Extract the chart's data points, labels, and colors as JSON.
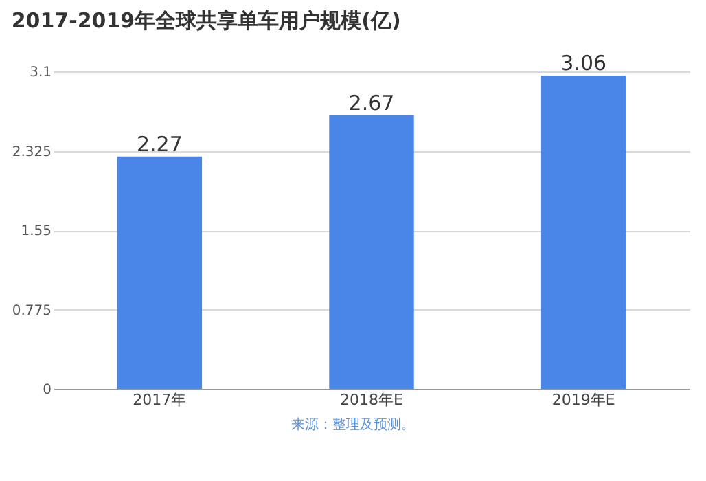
{
  "chart_data": {
    "type": "bar",
    "title": "2017-2019年全球共享单车用户规模(亿)",
    "categories": [
      "2017年",
      "2018年E",
      "2019年E"
    ],
    "values": [
      2.27,
      2.67,
      3.06
    ],
    "color": "#4a86e8",
    "ylim": [
      0,
      3.1
    ],
    "yticks": [
      0,
      0.775,
      1.55,
      2.325,
      3.1
    ],
    "grid": "y",
    "data_labels": true,
    "annotations": [
      "来源：整理及预测。"
    ]
  }
}
